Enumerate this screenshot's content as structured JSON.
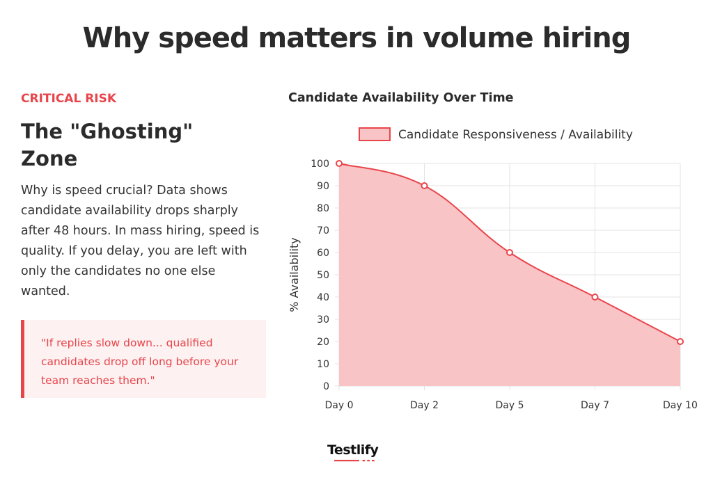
{
  "page": {
    "title": "Why speed matters in volume hiring"
  },
  "left": {
    "eyebrow": "CRITICAL RISK",
    "heading": "The \"Ghosting\" Zone",
    "body": "Why is speed crucial? Data shows candidate availability drops sharply after 48 hours. In mass hiring, speed is quality. If you delay, you are left with only the candidates no one else wanted.",
    "quote": "\"If replies slow down... qualified candidates drop off long before your team reaches them.\""
  },
  "brand": {
    "logo_text": "Testlify",
    "accent": "#e8454b"
  },
  "chart_data": {
    "type": "area",
    "title": "Candidate Availability Over Time",
    "xlabel": "",
    "ylabel": "% Availability",
    "categories": [
      "Day 0",
      "Day 2",
      "Day 5",
      "Day 7",
      "Day 10"
    ],
    "series": [
      {
        "name": "Candidate Responsiveness / Availability",
        "values": [
          100,
          90,
          60,
          40,
          20
        ],
        "color": "#e8454b",
        "fill": "#f8c4c6"
      }
    ],
    "ylim": [
      0,
      100
    ],
    "yticks": [
      0,
      10,
      20,
      30,
      40,
      50,
      60,
      70,
      80,
      90,
      100
    ],
    "grid": true,
    "legend": "top",
    "smooth": true
  }
}
